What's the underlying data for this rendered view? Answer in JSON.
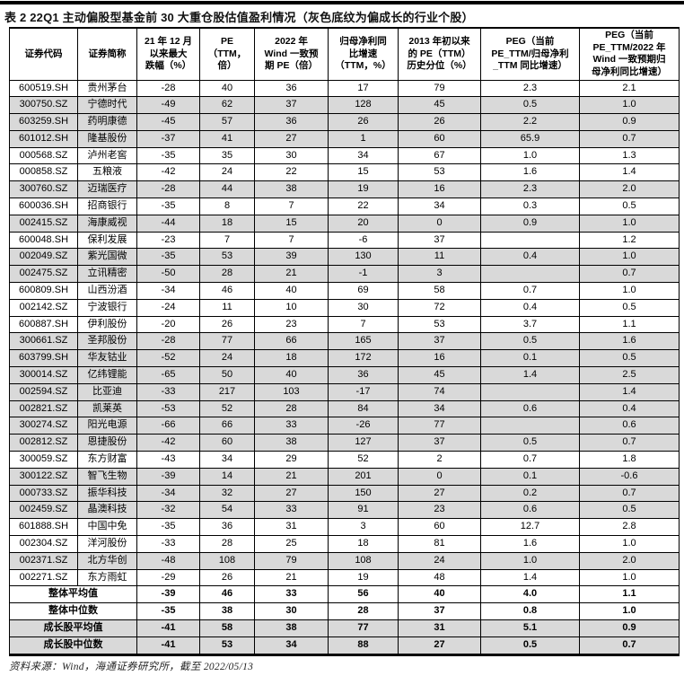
{
  "title": "表 2  22Q1 主动偏股型基金前 30 大重仓股估值盈利情况（灰色底纹为偏成长的行业个股）",
  "footer": "资料来源：Wind，海通证券研究所，截至 2022/05/13",
  "colors": {
    "growth_row_fill": "#D9D9D9",
    "border": "#000000",
    "background": "#ffffff"
  },
  "table": {
    "headers": [
      "证券代码",
      "证券简称",
      "21 年 12 月\n以来最大\n跌幅（%）",
      "PE\n（TTM，\n倍）",
      "2022 年\nWind 一致预\n期 PE（倍）",
      "归母净利同\n比增速\n（TTM，%）",
      "2013 年初以来\n的 PE（TTM）\n历史分位（%）",
      "PEG（当前\nPE_TTM/归母净利\n_TTM 同比增速）",
      "PEG（当前\nPE_TTM/2022 年\nWind 一致预期归\n母净利同比增速）"
    ],
    "rows": [
      {
        "code": "600519.SH",
        "name": "贵州茅台",
        "gray": false,
        "values": [
          "-28",
          "40",
          "36",
          "17",
          "79",
          "2.3",
          "2.1"
        ]
      },
      {
        "code": "300750.SZ",
        "name": "宁德时代",
        "gray": true,
        "values": [
          "-49",
          "62",
          "37",
          "128",
          "45",
          "0.5",
          "1.0"
        ]
      },
      {
        "code": "603259.SH",
        "name": "药明康德",
        "gray": true,
        "values": [
          "-45",
          "57",
          "36",
          "26",
          "26",
          "2.2",
          "0.9"
        ]
      },
      {
        "code": "601012.SH",
        "name": "隆基股份",
        "gray": true,
        "values": [
          "-37",
          "41",
          "27",
          "1",
          "60",
          "65.9",
          "0.7"
        ]
      },
      {
        "code": "000568.SZ",
        "name": "泸州老窖",
        "gray": false,
        "values": [
          "-35",
          "35",
          "30",
          "34",
          "67",
          "1.0",
          "1.3"
        ]
      },
      {
        "code": "000858.SZ",
        "name": "五粮液",
        "gray": false,
        "values": [
          "-42",
          "24",
          "22",
          "15",
          "53",
          "1.6",
          "1.4"
        ]
      },
      {
        "code": "300760.SZ",
        "name": "迈瑞医疗",
        "gray": true,
        "values": [
          "-28",
          "44",
          "38",
          "19",
          "16",
          "2.3",
          "2.0"
        ]
      },
      {
        "code": "600036.SH",
        "name": "招商银行",
        "gray": false,
        "values": [
          "-35",
          "8",
          "7",
          "22",
          "34",
          "0.3",
          "0.5"
        ]
      },
      {
        "code": "002415.SZ",
        "name": "海康威视",
        "gray": true,
        "values": [
          "-44",
          "18",
          "15",
          "20",
          "0",
          "0.9",
          "1.0"
        ]
      },
      {
        "code": "600048.SH",
        "name": "保利发展",
        "gray": false,
        "values": [
          "-23",
          "7",
          "7",
          "-6",
          "37",
          "",
          "1.2"
        ]
      },
      {
        "code": "002049.SZ",
        "name": "紫光国微",
        "gray": true,
        "values": [
          "-35",
          "53",
          "39",
          "130",
          "11",
          "0.4",
          "1.0"
        ]
      },
      {
        "code": "002475.SZ",
        "name": "立讯精密",
        "gray": true,
        "values": [
          "-50",
          "28",
          "21",
          "-1",
          "3",
          "",
          "0.7"
        ]
      },
      {
        "code": "600809.SH",
        "name": "山西汾酒",
        "gray": false,
        "values": [
          "-34",
          "46",
          "40",
          "69",
          "58",
          "0.7",
          "1.0"
        ]
      },
      {
        "code": "002142.SZ",
        "name": "宁波银行",
        "gray": false,
        "values": [
          "-24",
          "11",
          "10",
          "30",
          "72",
          "0.4",
          "0.5"
        ]
      },
      {
        "code": "600887.SH",
        "name": "伊利股份",
        "gray": false,
        "values": [
          "-20",
          "26",
          "23",
          "7",
          "53",
          "3.7",
          "1.1"
        ]
      },
      {
        "code": "300661.SZ",
        "name": "圣邦股份",
        "gray": true,
        "values": [
          "-28",
          "77",
          "66",
          "165",
          "37",
          "0.5",
          "1.6"
        ]
      },
      {
        "code": "603799.SH",
        "name": "华友钴业",
        "gray": true,
        "values": [
          "-52",
          "24",
          "18",
          "172",
          "16",
          "0.1",
          "0.5"
        ]
      },
      {
        "code": "300014.SZ",
        "name": "亿纬锂能",
        "gray": true,
        "values": [
          "-65",
          "50",
          "40",
          "36",
          "45",
          "1.4",
          "2.5"
        ]
      },
      {
        "code": "002594.SZ",
        "name": "比亚迪",
        "gray": true,
        "values": [
          "-33",
          "217",
          "103",
          "-17",
          "74",
          "",
          "1.4"
        ]
      },
      {
        "code": "002821.SZ",
        "name": "凯莱英",
        "gray": true,
        "values": [
          "-53",
          "52",
          "28",
          "84",
          "34",
          "0.6",
          "0.4"
        ]
      },
      {
        "code": "300274.SZ",
        "name": "阳光电源",
        "gray": true,
        "values": [
          "-66",
          "66",
          "33",
          "-26",
          "77",
          "",
          "0.6"
        ]
      },
      {
        "code": "002812.SZ",
        "name": "恩捷股份",
        "gray": true,
        "values": [
          "-42",
          "60",
          "38",
          "127",
          "37",
          "0.5",
          "0.7"
        ]
      },
      {
        "code": "300059.SZ",
        "name": "东方财富",
        "gray": false,
        "values": [
          "-43",
          "34",
          "29",
          "52",
          "2",
          "0.7",
          "1.8"
        ]
      },
      {
        "code": "300122.SZ",
        "name": "智飞生物",
        "gray": true,
        "values": [
          "-39",
          "14",
          "21",
          "201",
          "0",
          "0.1",
          "-0.6"
        ]
      },
      {
        "code": "000733.SZ",
        "name": "振华科技",
        "gray": true,
        "values": [
          "-34",
          "32",
          "27",
          "150",
          "27",
          "0.2",
          "0.7"
        ]
      },
      {
        "code": "002459.SZ",
        "name": "晶澳科技",
        "gray": true,
        "values": [
          "-32",
          "54",
          "33",
          "91",
          "23",
          "0.6",
          "0.5"
        ]
      },
      {
        "code": "601888.SH",
        "name": "中国中免",
        "gray": false,
        "values": [
          "-35",
          "36",
          "31",
          "3",
          "60",
          "12.7",
          "2.8"
        ]
      },
      {
        "code": "002304.SZ",
        "name": "洋河股份",
        "gray": false,
        "values": [
          "-33",
          "28",
          "25",
          "18",
          "81",
          "1.6",
          "1.0"
        ]
      },
      {
        "code": "002371.SZ",
        "name": "北方华创",
        "gray": true,
        "values": [
          "-48",
          "108",
          "79",
          "108",
          "24",
          "1.0",
          "2.0"
        ]
      },
      {
        "code": "002271.SZ",
        "name": "东方雨虹",
        "gray": false,
        "values": [
          "-29",
          "26",
          "21",
          "19",
          "48",
          "1.4",
          "1.0"
        ]
      }
    ],
    "summary_rows": [
      {
        "label": "整体平均值",
        "gray": false,
        "values": [
          "-39",
          "46",
          "33",
          "56",
          "40",
          "4.0",
          "1.1"
        ]
      },
      {
        "label": "整体中位数",
        "gray": false,
        "values": [
          "-35",
          "38",
          "30",
          "28",
          "37",
          "0.8",
          "1.0"
        ]
      },
      {
        "label": "成长股平均值",
        "gray": true,
        "values": [
          "-41",
          "58",
          "38",
          "77",
          "31",
          "5.1",
          "0.9"
        ]
      },
      {
        "label": "成长股中位数",
        "gray": true,
        "values": [
          "-41",
          "53",
          "34",
          "88",
          "27",
          "0.5",
          "0.7"
        ]
      }
    ]
  }
}
